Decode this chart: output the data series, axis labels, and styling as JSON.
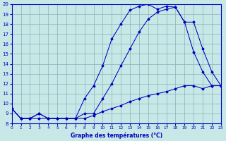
{
  "background_color": "#c8e8e8",
  "grid_color": "#8ab0b8",
  "line_color": "#0000bb",
  "spine_color": "#0000bb",
  "xlim": [
    0,
    23
  ],
  "ylim": [
    8,
    20
  ],
  "yticks": [
    8,
    9,
    10,
    11,
    12,
    13,
    14,
    15,
    16,
    17,
    18,
    19,
    20
  ],
  "xticks": [
    0,
    1,
    2,
    3,
    4,
    5,
    6,
    7,
    8,
    9,
    10,
    11,
    12,
    13,
    14,
    15,
    16,
    17,
    18,
    19,
    20,
    21,
    22,
    23
  ],
  "series": [
    [
      9.5,
      8.5,
      8.5,
      9.0,
      8.5,
      8.5,
      8.5,
      8.5,
      10.5,
      11.8,
      13.8,
      16.5,
      18.0,
      19.4,
      19.8,
      20.0,
      19.5,
      19.8,
      19.7,
      18.2,
      15.2,
      13.2,
      11.8,
      11.8
    ],
    [
      9.5,
      8.5,
      8.5,
      9.0,
      8.5,
      8.5,
      8.5,
      8.5,
      9.0,
      9.0,
      10.5,
      12.0,
      13.8,
      15.5,
      17.2,
      18.5,
      19.2,
      19.5,
      19.7,
      18.2,
      18.2,
      15.5,
      13.2,
      11.8
    ],
    [
      9.5,
      8.5,
      8.5,
      8.5,
      8.5,
      8.5,
      8.5,
      8.5,
      8.5,
      8.8,
      9.2,
      9.5,
      9.8,
      10.2,
      10.5,
      10.8,
      11.0,
      11.2,
      11.5,
      11.8,
      11.8,
      11.5,
      11.8,
      11.8
    ]
  ],
  "xlabel": "Graphe des températures (°C)"
}
